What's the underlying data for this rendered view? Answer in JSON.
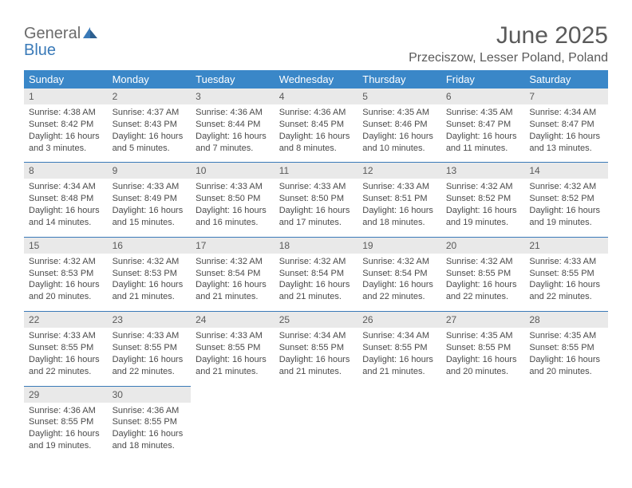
{
  "brand": {
    "general": "General",
    "blue": "Blue"
  },
  "title": "June 2025",
  "location": "Przeciszow, Lesser Poland, Poland",
  "colors": {
    "header_bg": "#3a87c8",
    "header_text": "#ffffff",
    "accent_border": "#3a7ab8",
    "daynum_bg": "#e9e9e9",
    "text": "#5a5a5a",
    "detail_text": "#4a4a4a",
    "page_bg": "#ffffff"
  },
  "typography": {
    "title_fontsize": 30,
    "location_fontsize": 16,
    "dayheader_fontsize": 13,
    "daynum_fontsize": 12,
    "detail_fontsize": 11
  },
  "day_names": [
    "Sunday",
    "Monday",
    "Tuesday",
    "Wednesday",
    "Thursday",
    "Friday",
    "Saturday"
  ],
  "weeks": [
    [
      {
        "n": "1",
        "sunrise": "4:38 AM",
        "sunset": "8:42 PM",
        "daylight": "16 hours and 3 minutes."
      },
      {
        "n": "2",
        "sunrise": "4:37 AM",
        "sunset": "8:43 PM",
        "daylight": "16 hours and 5 minutes."
      },
      {
        "n": "3",
        "sunrise": "4:36 AM",
        "sunset": "8:44 PM",
        "daylight": "16 hours and 7 minutes."
      },
      {
        "n": "4",
        "sunrise": "4:36 AM",
        "sunset": "8:45 PM",
        "daylight": "16 hours and 8 minutes."
      },
      {
        "n": "5",
        "sunrise": "4:35 AM",
        "sunset": "8:46 PM",
        "daylight": "16 hours and 10 minutes."
      },
      {
        "n": "6",
        "sunrise": "4:35 AM",
        "sunset": "8:47 PM",
        "daylight": "16 hours and 11 minutes."
      },
      {
        "n": "7",
        "sunrise": "4:34 AM",
        "sunset": "8:47 PM",
        "daylight": "16 hours and 13 minutes."
      }
    ],
    [
      {
        "n": "8",
        "sunrise": "4:34 AM",
        "sunset": "8:48 PM",
        "daylight": "16 hours and 14 minutes."
      },
      {
        "n": "9",
        "sunrise": "4:33 AM",
        "sunset": "8:49 PM",
        "daylight": "16 hours and 15 minutes."
      },
      {
        "n": "10",
        "sunrise": "4:33 AM",
        "sunset": "8:50 PM",
        "daylight": "16 hours and 16 minutes."
      },
      {
        "n": "11",
        "sunrise": "4:33 AM",
        "sunset": "8:50 PM",
        "daylight": "16 hours and 17 minutes."
      },
      {
        "n": "12",
        "sunrise": "4:33 AM",
        "sunset": "8:51 PM",
        "daylight": "16 hours and 18 minutes."
      },
      {
        "n": "13",
        "sunrise": "4:32 AM",
        "sunset": "8:52 PM",
        "daylight": "16 hours and 19 minutes."
      },
      {
        "n": "14",
        "sunrise": "4:32 AM",
        "sunset": "8:52 PM",
        "daylight": "16 hours and 19 minutes."
      }
    ],
    [
      {
        "n": "15",
        "sunrise": "4:32 AM",
        "sunset": "8:53 PM",
        "daylight": "16 hours and 20 minutes."
      },
      {
        "n": "16",
        "sunrise": "4:32 AM",
        "sunset": "8:53 PM",
        "daylight": "16 hours and 21 minutes."
      },
      {
        "n": "17",
        "sunrise": "4:32 AM",
        "sunset": "8:54 PM",
        "daylight": "16 hours and 21 minutes."
      },
      {
        "n": "18",
        "sunrise": "4:32 AM",
        "sunset": "8:54 PM",
        "daylight": "16 hours and 21 minutes."
      },
      {
        "n": "19",
        "sunrise": "4:32 AM",
        "sunset": "8:54 PM",
        "daylight": "16 hours and 22 minutes."
      },
      {
        "n": "20",
        "sunrise": "4:32 AM",
        "sunset": "8:55 PM",
        "daylight": "16 hours and 22 minutes."
      },
      {
        "n": "21",
        "sunrise": "4:33 AM",
        "sunset": "8:55 PM",
        "daylight": "16 hours and 22 minutes."
      }
    ],
    [
      {
        "n": "22",
        "sunrise": "4:33 AM",
        "sunset": "8:55 PM",
        "daylight": "16 hours and 22 minutes."
      },
      {
        "n": "23",
        "sunrise": "4:33 AM",
        "sunset": "8:55 PM",
        "daylight": "16 hours and 22 minutes."
      },
      {
        "n": "24",
        "sunrise": "4:33 AM",
        "sunset": "8:55 PM",
        "daylight": "16 hours and 21 minutes."
      },
      {
        "n": "25",
        "sunrise": "4:34 AM",
        "sunset": "8:55 PM",
        "daylight": "16 hours and 21 minutes."
      },
      {
        "n": "26",
        "sunrise": "4:34 AM",
        "sunset": "8:55 PM",
        "daylight": "16 hours and 21 minutes."
      },
      {
        "n": "27",
        "sunrise": "4:35 AM",
        "sunset": "8:55 PM",
        "daylight": "16 hours and 20 minutes."
      },
      {
        "n": "28",
        "sunrise": "4:35 AM",
        "sunset": "8:55 PM",
        "daylight": "16 hours and 20 minutes."
      }
    ],
    [
      {
        "n": "29",
        "sunrise": "4:36 AM",
        "sunset": "8:55 PM",
        "daylight": "16 hours and 19 minutes."
      },
      {
        "n": "30",
        "sunrise": "4:36 AM",
        "sunset": "8:55 PM",
        "daylight": "16 hours and 18 minutes."
      },
      null,
      null,
      null,
      null,
      null
    ]
  ],
  "labels": {
    "sunrise": "Sunrise:",
    "sunset": "Sunset:",
    "daylight": "Daylight:"
  }
}
